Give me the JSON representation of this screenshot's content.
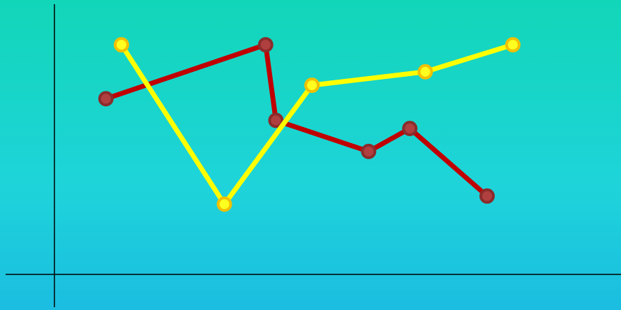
{
  "chart_data": {
    "type": "line",
    "title": "",
    "xlabel": "",
    "ylabel": "",
    "grid": false,
    "legend": "none",
    "xlim": [
      0,
      11
    ],
    "ylim": [
      0,
      20
    ],
    "series": [
      {
        "color": "#c00000",
        "marker_fill": "#b04040",
        "marker_stroke": "#8b2c2c",
        "points": [
          {
            "x": 1.0,
            "y": 13.0
          },
          {
            "x": 4.1,
            "y": 17.0
          },
          {
            "x": 4.3,
            "y": 11.4
          },
          {
            "x": 6.1,
            "y": 9.1
          },
          {
            "x": 6.9,
            "y": 10.8
          },
          {
            "x": 8.4,
            "y": 5.8
          }
        ]
      },
      {
        "color": "#ffff00",
        "marker_fill": "#ffff20",
        "marker_stroke": "#f0c000",
        "points": [
          {
            "x": 1.3,
            "y": 17.0
          },
          {
            "x": 3.3,
            "y": 5.2
          },
          {
            "x": 5.0,
            "y": 14.0
          },
          {
            "x": 7.2,
            "y": 15.0
          },
          {
            "x": 8.9,
            "y": 17.0
          }
        ]
      }
    ],
    "background_gradient": [
      "#12d6b8",
      "#1ed4da",
      "#1bbde0"
    ],
    "axis_color": "#000000"
  }
}
